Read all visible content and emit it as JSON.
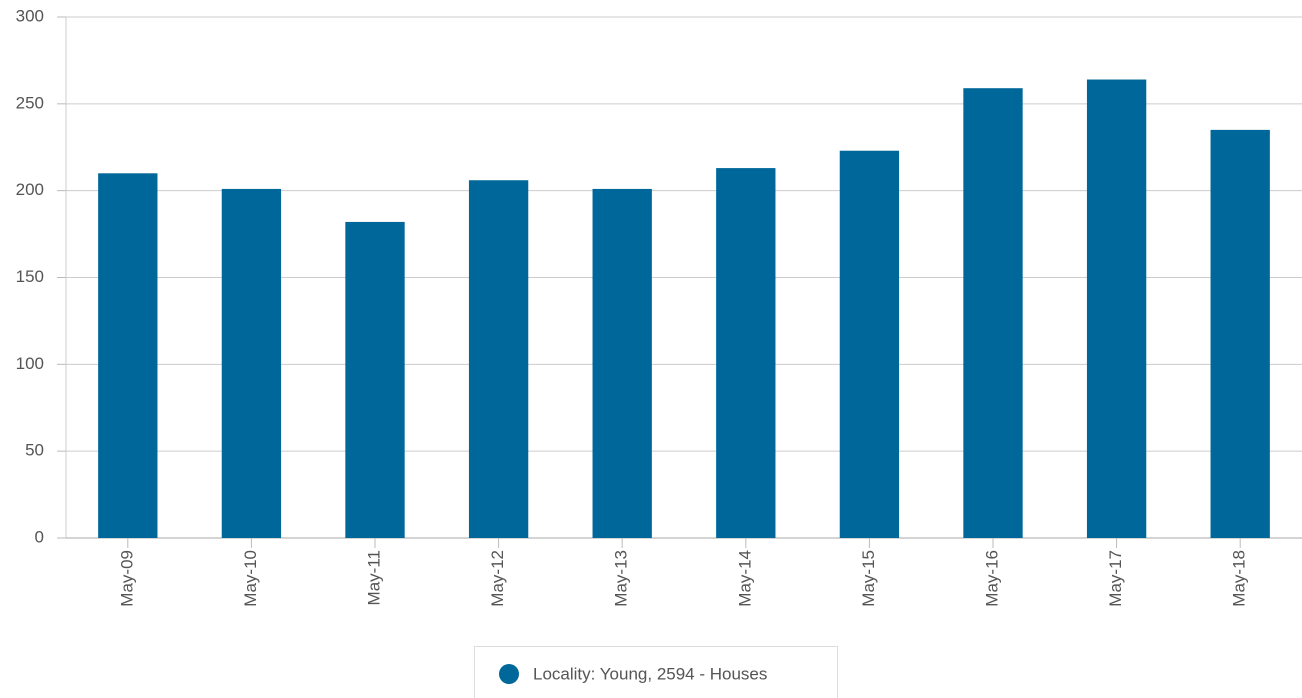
{
  "chart_data": {
    "type": "bar",
    "categories": [
      "May-09",
      "May-10",
      "May-11",
      "May-12",
      "May-13",
      "May-14",
      "May-15",
      "May-16",
      "May-17",
      "May-18"
    ],
    "series": [
      {
        "name": "Locality: Young, 2594 - Houses",
        "color": "#00679a",
        "values": [
          210,
          201,
          182,
          206,
          201,
          213,
          223,
          259,
          264,
          235
        ]
      }
    ],
    "ylim": [
      0,
      300
    ],
    "yticks": [
      0,
      50,
      100,
      150,
      200,
      250,
      300
    ],
    "grid": true,
    "legend": "bottom"
  }
}
